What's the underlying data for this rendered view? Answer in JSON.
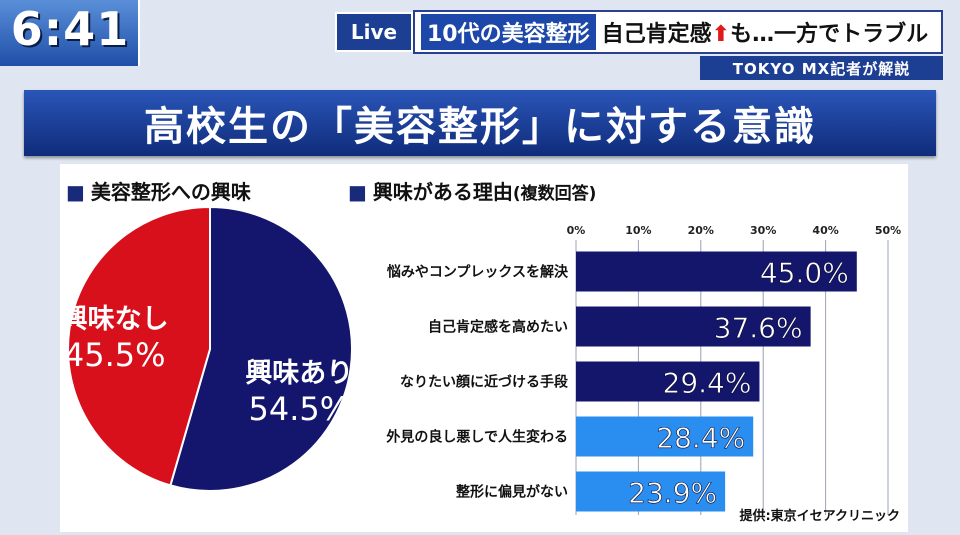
{
  "header": {
    "clock": "6:41",
    "live_label": "Live",
    "headline_tag": "10代の美容整形",
    "headline_text_before": "自己肯定感",
    "headline_arrow": "⬆",
    "headline_text_after": "も…一方でトラブル",
    "reporter": "TOKYO MX記者が解説"
  },
  "title": "高校生の「美容整形」に対する意識",
  "pie": {
    "bullet": "■",
    "section_title": "美容整形への興味"
  },
  "bars": {
    "bullet": "■",
    "section_title": "興味がある理由",
    "section_note": "(複数回答)"
  },
  "credit": "提供:東京イセアクリニック",
  "chart_data": [
    {
      "type": "pie",
      "title": "美容整形への興味",
      "slices": [
        {
          "label": "興味あり",
          "value": 54.5,
          "value_label": "54.5%",
          "color": "#14166e"
        },
        {
          "label": "興味なし",
          "value": 45.5,
          "value_label": "45.5%",
          "color": "#d8101c"
        }
      ]
    },
    {
      "type": "bar",
      "orientation": "horizontal",
      "title": "興味がある理由(複数回答)",
      "categories": [
        "悩みやコンプレックスを解決",
        "自己肯定感を高めたい",
        "なりたい顔に近づける手段",
        "外見の良し悪しで人生変わる",
        "整形に偏見がない"
      ],
      "values": [
        45.0,
        37.6,
        29.4,
        28.4,
        23.9
      ],
      "value_labels": [
        "45.0%",
        "37.6%",
        "29.4%",
        "28.4%",
        "23.9%"
      ],
      "colors": [
        "#13166b",
        "#13166b",
        "#13166b",
        "#2a8ef0",
        "#2a8ef0"
      ],
      "xlim": [
        0,
        50
      ],
      "xticks": [
        "0%",
        "10%",
        "20%",
        "30%",
        "40%",
        "50%"
      ],
      "grid": true
    }
  ]
}
